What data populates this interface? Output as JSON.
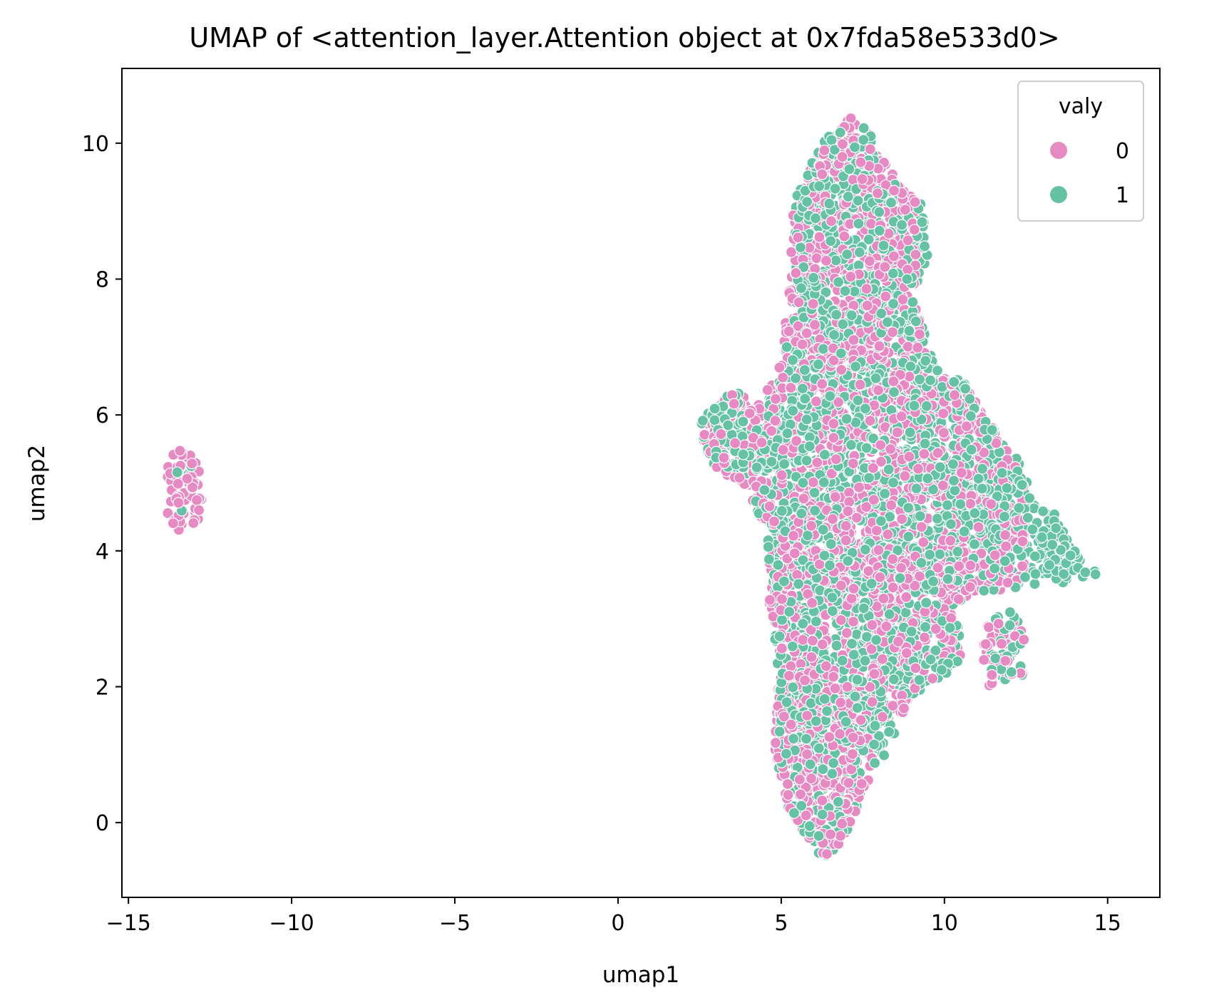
{
  "chart_data": {
    "type": "scatter",
    "title": "UMAP of <attention_layer.Attention object at 0x7fda58e533d0>",
    "xlabel": "umap1",
    "ylabel": "umap2",
    "xlim": [
      -15.2,
      16.6
    ],
    "ylim": [
      -1.1,
      11.1
    ],
    "x_ticks": [
      -15,
      -10,
      -5,
      0,
      5,
      10,
      15
    ],
    "x_tick_labels": [
      "−15",
      "−10",
      "−5",
      "0",
      "5",
      "10",
      "15"
    ],
    "y_ticks": [
      0,
      2,
      4,
      6,
      8,
      10
    ],
    "y_tick_labels": [
      "0",
      "2",
      "4",
      "6",
      "8",
      "10"
    ],
    "grid": false,
    "legend": {
      "title": "valy",
      "placement": "top-right",
      "entries": [
        {
          "label": "0",
          "color": "#e78ac3"
        },
        {
          "label": "1",
          "color": "#66c2a5"
        }
      ]
    },
    "series": [
      {
        "name": "0",
        "color": "#e78ac3",
        "regions": [
          {
            "x": [
              -13.8,
              -12.7
            ],
            "y": [
              4.3,
              5.5
            ],
            "density": 0.55
          },
          {
            "x": [
              5.2,
              9.2
            ],
            "y": [
              7.5,
              10.4
            ],
            "density": 0.5
          },
          {
            "x": [
              2.6,
              12.5
            ],
            "y": [
              3.4,
              7.5
            ],
            "density": 0.45
          },
          {
            "x": [
              4.6,
              10.8
            ],
            "y": [
              1.5,
              4.0
            ],
            "density": 0.5
          },
          {
            "x": [
              4.8,
              7.8
            ],
            "y": [
              -0.55,
              2.0
            ],
            "density": 0.6
          },
          {
            "x": [
              11.2,
              12.5
            ],
            "y": [
              2.0,
              3.0
            ],
            "density": 0.4
          }
        ]
      },
      {
        "name": "1",
        "color": "#66c2a5",
        "regions": [
          {
            "x": [
              -13.6,
              -12.8
            ],
            "y": [
              4.5,
              5.3
            ],
            "density": 0.1
          },
          {
            "x": [
              5.4,
              9.8
            ],
            "y": [
              7.0,
              10.5
            ],
            "density": 0.5
          },
          {
            "x": [
              2.5,
              15.0
            ],
            "y": [
              3.4,
              7.0
            ],
            "density": 0.55
          },
          {
            "x": [
              4.8,
              10.5
            ],
            "y": [
              1.0,
              4.0
            ],
            "density": 0.5
          },
          {
            "x": [
              4.9,
              8.2
            ],
            "y": [
              -0.5,
              2.0
            ],
            "density": 0.4
          },
          {
            "x": [
              11.4,
              12.4
            ],
            "y": [
              2.1,
              3.1
            ],
            "density": 0.5
          }
        ]
      }
    ]
  }
}
